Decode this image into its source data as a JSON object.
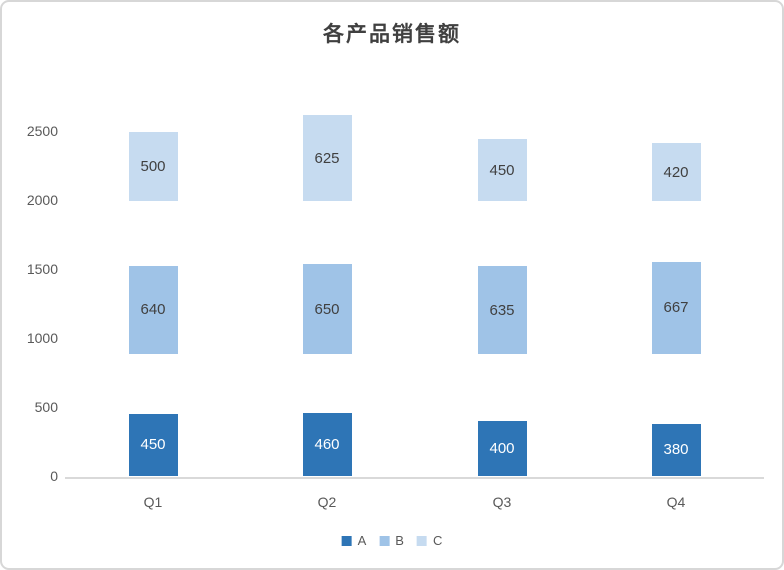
{
  "window": {
    "background_color": "#ffffff",
    "border_color": "#d7d7d7"
  },
  "chart_data": {
    "type": "bar",
    "variant": "floating-stacked-segments",
    "title": "各产品销售额",
    "categories": [
      "Q1",
      "Q2",
      "Q3",
      "Q4"
    ],
    "series": [
      {
        "name": "A",
        "values": [
          450,
          460,
          400,
          380
        ],
        "base_value": 0,
        "color": "#2E75B6",
        "label_color": "#ffffff"
      },
      {
        "name": "B",
        "values": [
          640,
          650,
          635,
          667
        ],
        "base_value": 885,
        "color": "#9FC3E7",
        "label_color": "#404040"
      },
      {
        "name": "C",
        "values": [
          500,
          625,
          450,
          420
        ],
        "base_value": 1990,
        "color": "#C6DBF0",
        "label_color": "#404040"
      }
    ],
    "yticks": [
      0,
      500,
      1000,
      1500,
      2000,
      2500
    ],
    "ylim": [
      0,
      2900
    ],
    "grid": false,
    "legend_position": "bottom",
    "legend_labels": [
      "A",
      "B",
      "C"
    ],
    "axis_line_color": "#d9d9d9",
    "tick_label_color": "#595959",
    "title_color": "#404040"
  }
}
